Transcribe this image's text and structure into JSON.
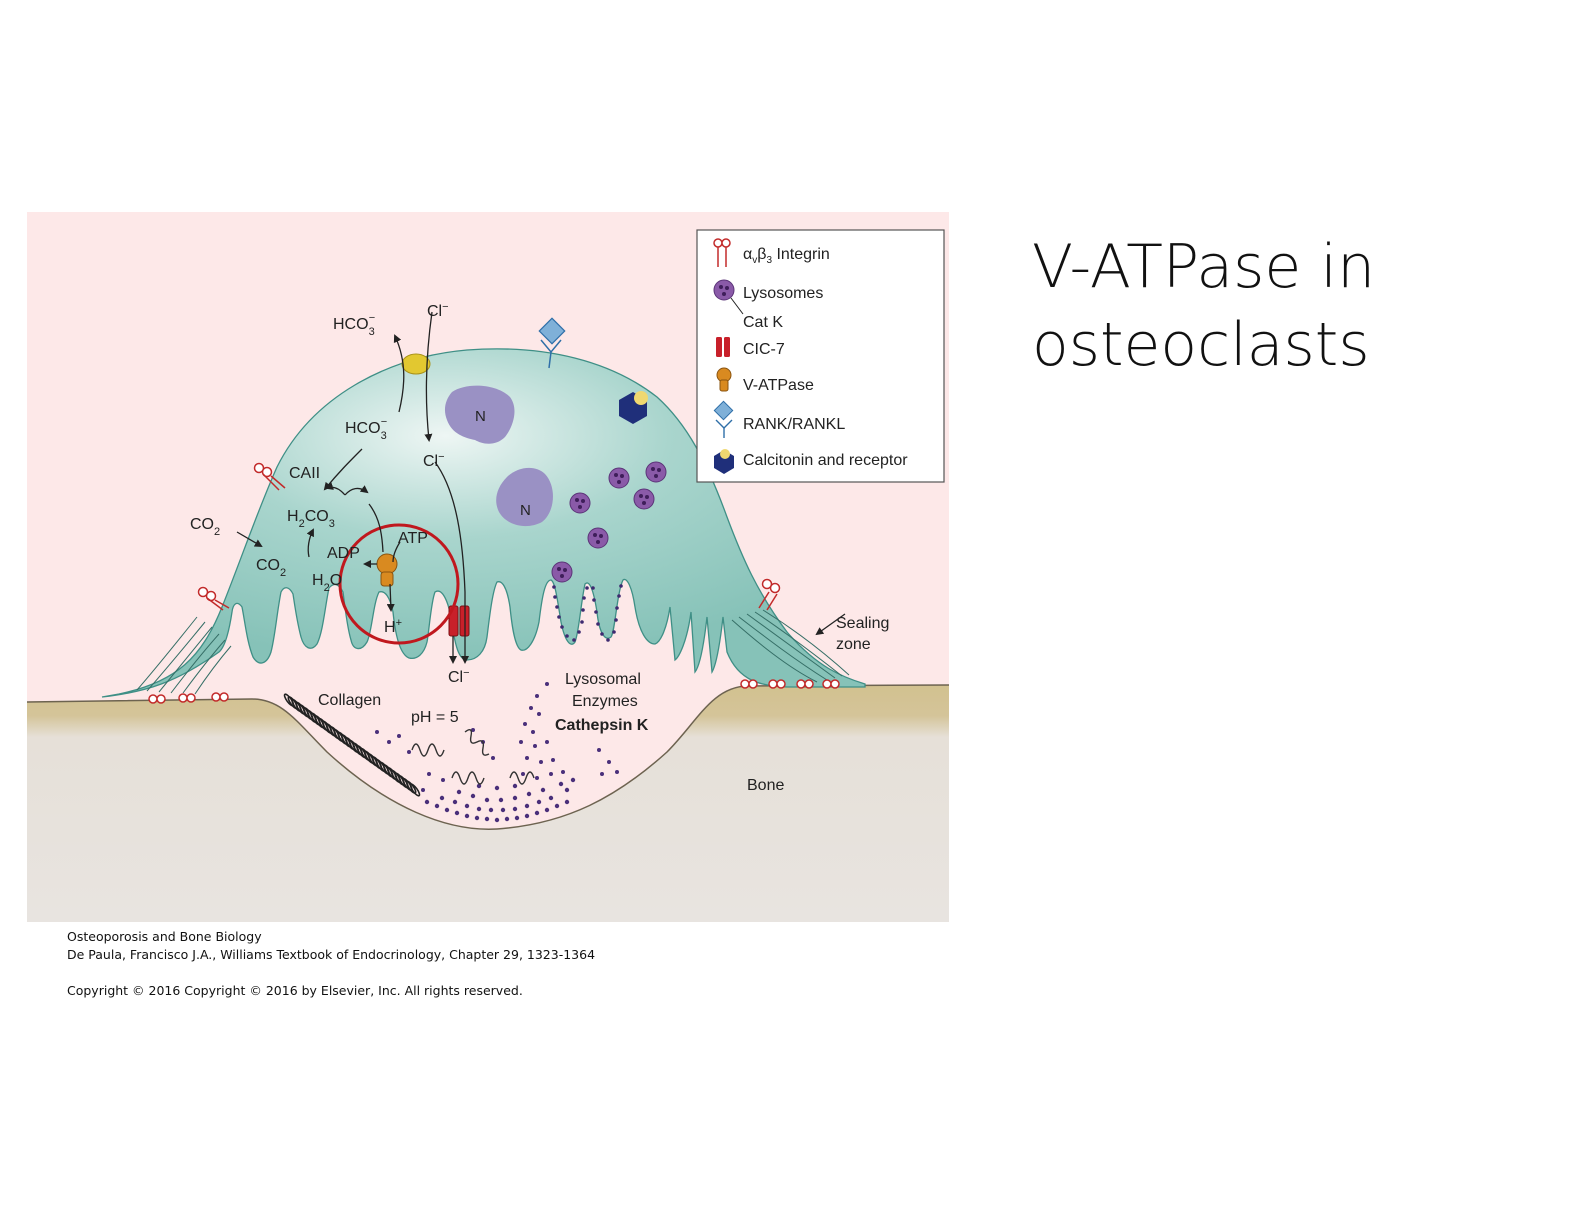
{
  "title": "V-ATPase in osteoclasts",
  "figure": {
    "legend": {
      "integrin_prefix": "α",
      "integrin_v": "v",
      "integrin_beta": "β",
      "integrin_3": "3",
      "integrin_label": " Integrin",
      "lysosomes": "Lysosomes",
      "cat_k": "Cat K",
      "cic7": "CIC-7",
      "vatpase": "V-ATPase",
      "rank": "RANK/RANKL",
      "calcitonin": "Calcitonin and receptor"
    },
    "labels": {
      "hco3_out": "HCO",
      "hco3_in": "HCO",
      "sub3": "3",
      "sup_minus": "−",
      "cl": "Cl",
      "nucleus": "N",
      "caii": "CAII",
      "co2": "CO",
      "sub2": "2",
      "h2co3_h": "H",
      "h2co3_co": "CO",
      "adp": "ADP",
      "atp": "ATP",
      "h2o_h": "H",
      "h2o_o": "O",
      "h_plus": "H",
      "sup_plus": "+",
      "sealing": "Sealing",
      "zone": "zone",
      "collagen": "Collagen",
      "ph": "pH = 5",
      "lysosomal": "Lysosomal",
      "enzymes": "Enzymes",
      "cathepsin": "Cathepsin K",
      "bone": "Bone"
    },
    "colors": {
      "background": "#fde8e8",
      "cell": "#8fc9bf",
      "cell_edge": "#3f8f86",
      "bone_top": "#d2c18f",
      "bone_bottom": "#e8e4e0",
      "nucleus": "#9a91c4",
      "lysosome": "#8a5aa8",
      "clc7": "#c8202a",
      "vatpase": "#d98a20",
      "rank": "#7fb0d8",
      "calcitonin": "#1f2f7a",
      "highlight": "#c0181e",
      "enzyme_dot": "#4a2f7a"
    }
  },
  "captions": {
    "line1": "Osteoporosis and Bone Biology",
    "line2": "De Paula, Francisco J.A., Williams Textbook of Endocrinology, Chapter 29, 1323-1364",
    "line3": "Copyright ©  2016   Copyright © 2016 by Elsevier, Inc. All rights reserved."
  }
}
